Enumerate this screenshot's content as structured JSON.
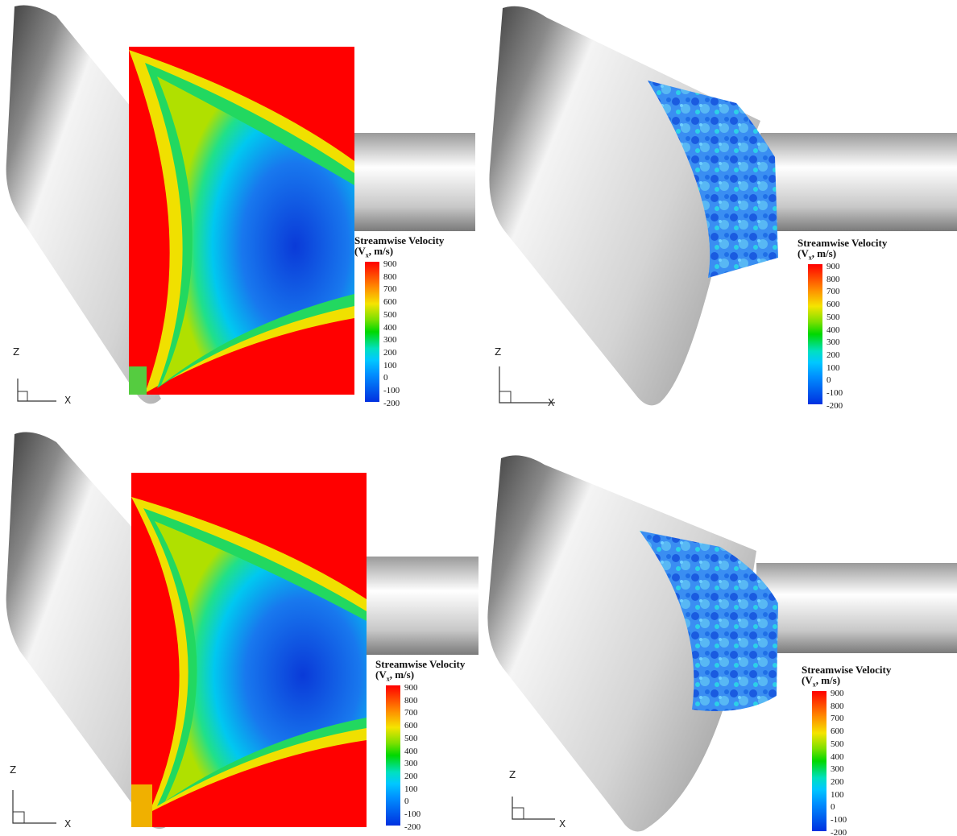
{
  "legend": {
    "title": "Streamwise Velocity",
    "unit_prefix": "(V",
    "unit_sub": "x",
    "unit_suffix": ", m/s)",
    "ticks": [
      "900",
      "800",
      "700",
      "600",
      "500",
      "400",
      "300",
      "200",
      "100",
      "0",
      "-100",
      "-200"
    ]
  },
  "axes": {
    "vertical": "Z",
    "horizontal": "X"
  },
  "colors": {
    "body_light": "#f2f2f2",
    "body_dark": "#6e6e6e",
    "freestream": "#ff0000",
    "wake_core": "#0a4fe0"
  },
  "panels": [
    {
      "id": "top-left",
      "field": "smooth-plane"
    },
    {
      "id": "top-right",
      "field": "turbulent-slice"
    },
    {
      "id": "bottom-left",
      "field": "smooth-plane"
    },
    {
      "id": "bottom-right",
      "field": "turbulent-slice"
    }
  ]
}
